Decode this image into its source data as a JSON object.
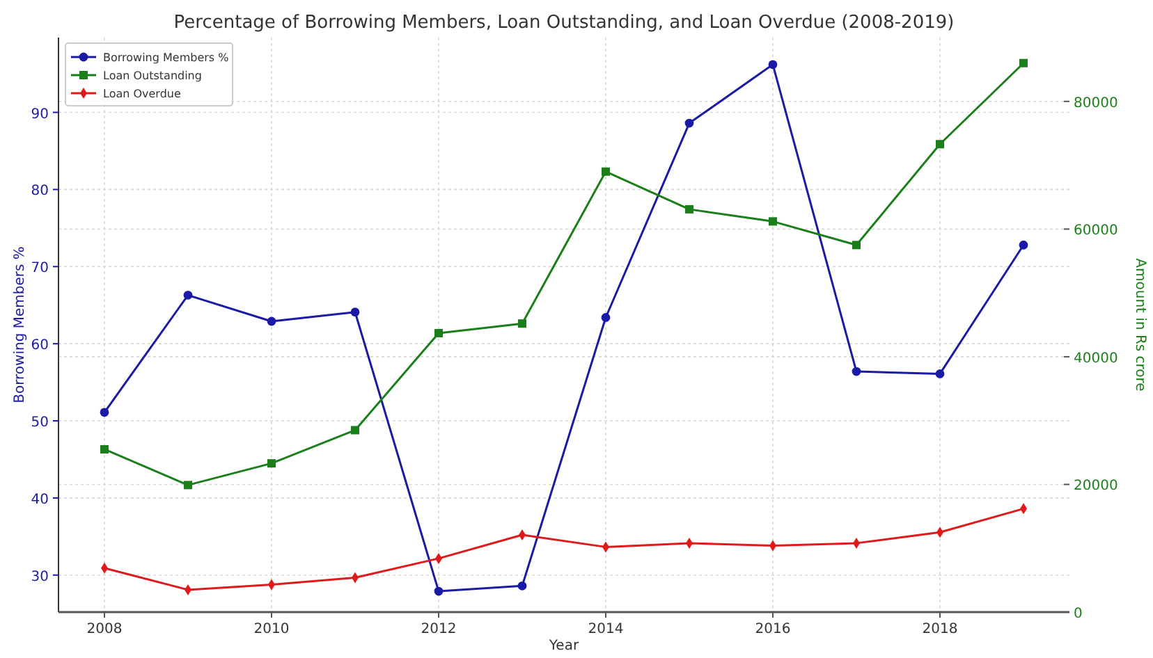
{
  "chart_data": {
    "type": "line",
    "title": "Percentage of Borrowing Members, Loan Outstanding, and Loan Overdue (2008-2019)",
    "xlabel": "Year",
    "ylabel": "Borrowing Members %",
    "y2label": "Amount in Rs crore",
    "x": [
      2008,
      2009,
      2010,
      2011,
      2012,
      2013,
      2014,
      2015,
      2016,
      2017,
      2018,
      2019
    ],
    "xlim": [
      2007.45,
      2019.55
    ],
    "xticks": [
      2008,
      2010,
      2012,
      2014,
      2016,
      2018
    ],
    "ylim": [
      25.2,
      99.7
    ],
    "yticks": [
      30,
      40,
      50,
      60,
      70,
      80,
      90
    ],
    "y2lim": [
      0,
      90000
    ],
    "y2ticks": [
      0,
      20000,
      40000,
      60000,
      80000
    ],
    "grid": true,
    "legend": "top left",
    "line_style": "solid",
    "series": [
      {
        "name": "Borrowing Members %",
        "color": "#1a1aa6",
        "marker": "circle",
        "values": [
          51.1,
          66.3,
          62.9,
          64.1,
          27.9,
          28.6,
          63.4,
          88.6,
          96.2,
          56.4,
          56.1,
          72.8
        ]
      },
      {
        "name": "Loan Outstanding",
        "color": "#1a7f1a",
        "marker": "square",
        "axis": "y2",
        "values": [
          25500,
          19900,
          23300,
          28500,
          43700,
          45200,
          69000,
          63100,
          61200,
          57500,
          73300,
          86000
        ]
      },
      {
        "name": "Loan Overdue",
        "color": "#e01a1a",
        "marker": "diamond",
        "axis": "y2",
        "values": [
          6900,
          3500,
          4300,
          5400,
          8400,
          12100,
          10200,
          10800,
          10400,
          10800,
          12500,
          16200
        ]
      }
    ]
  }
}
